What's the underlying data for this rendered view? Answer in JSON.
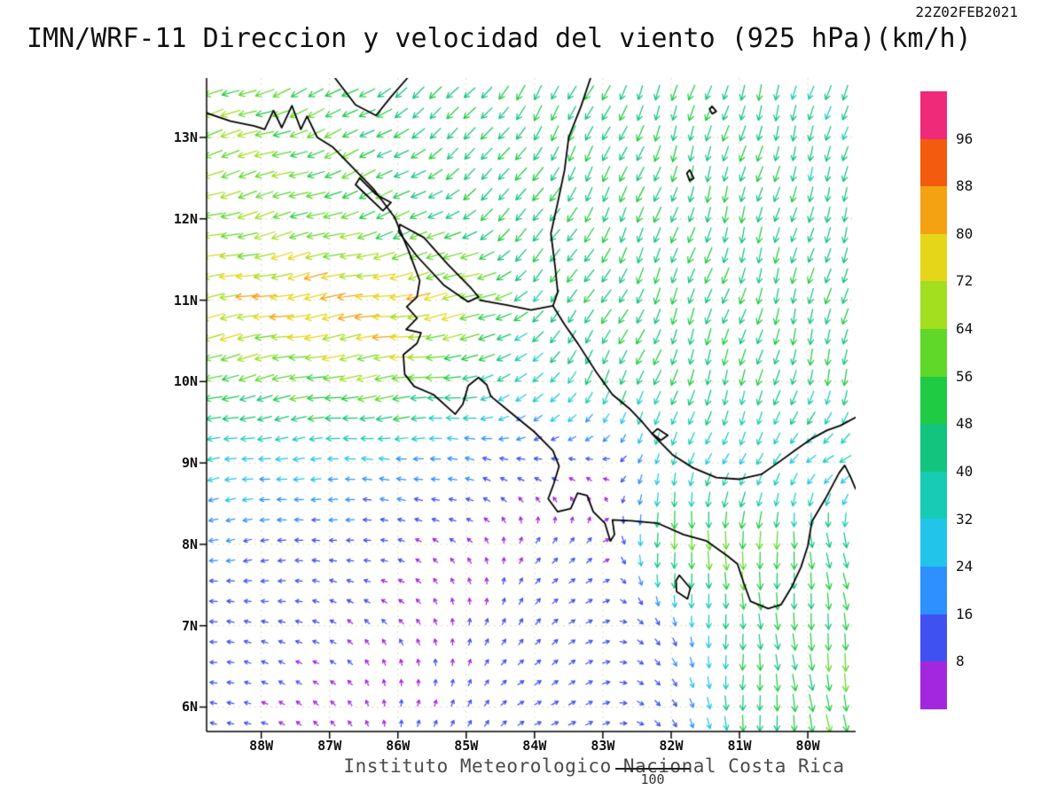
{
  "header": {
    "timestamp": "22Z02FEB2021",
    "title": "IMN/WRF-11 Direccion y velocidad del viento (925 hPa)(km/h)"
  },
  "footer": {
    "credit": "Instituto Meteorologico Nacional Costa Rica",
    "reference_value": "100"
  },
  "axes": {
    "lat_ticks": [
      "6N",
      "7N",
      "8N",
      "9N",
      "10N",
      "11N",
      "12N",
      "13N"
    ],
    "lon_ticks": [
      "88W",
      "87W",
      "86W",
      "85W",
      "84W",
      "83W",
      "82W",
      "81W",
      "80W"
    ],
    "lat_range": [
      5.7,
      13.73
    ],
    "lon_range": [
      -88.8,
      -79.3
    ]
  },
  "colorbar": {
    "levels": [
      8,
      16,
      24,
      32,
      40,
      48,
      56,
      64,
      72,
      80,
      88,
      96
    ],
    "colors": [
      "#a427e0",
      "#3f51f0",
      "#2e90ff",
      "#22c4ea",
      "#18cbb4",
      "#12c47e",
      "#1ecb43",
      "#5fd829",
      "#a3de1f",
      "#e6d619",
      "#f5a212",
      "#f35b0e",
      "#ef2a78"
    ]
  },
  "chart_data": {
    "type": "vector_field",
    "title": "IMN/WRF-11 Direccion y velocidad del viento (925 hPa)(km/h)",
    "units": "km/h",
    "level": "925 hPa",
    "valid_time": "22Z02FEB2021",
    "reference_vector": 100,
    "grid": {
      "lats": [
        6,
        7,
        8,
        9,
        10,
        11,
        12,
        13,
        14
      ],
      "lons": [
        -89,
        -88,
        -87,
        -86,
        -85,
        -84,
        -83,
        -82,
        -81,
        -80,
        -79
      ],
      "u": [
        [
          -10,
          -8,
          -5,
          0,
          5,
          10,
          12,
          8,
          2,
          5,
          10
        ],
        [
          -12,
          -10,
          -8,
          -5,
          0,
          8,
          10,
          5,
          0,
          5,
          10
        ],
        [
          -18,
          -15,
          -12,
          -8,
          -5,
          5,
          8,
          0,
          0,
          5,
          10
        ],
        [
          -30,
          -28,
          -25,
          -22,
          -18,
          -12,
          -8,
          -10,
          -15,
          -25,
          -30
        ],
        [
          -55,
          -55,
          -60,
          -65,
          -45,
          -25,
          -20,
          -15,
          -12,
          -10,
          -10
        ],
        [
          -70,
          -78,
          -82,
          -80,
          -70,
          -30,
          -25,
          -18,
          -15,
          -12,
          -12
        ],
        [
          -62,
          -60,
          -55,
          -50,
          -38,
          -28,
          -22,
          -15,
          -12,
          -12,
          -12
        ],
        [
          -62,
          -60,
          -52,
          -40,
          -32,
          -25,
          -20,
          -15,
          -12,
          -12,
          -12
        ],
        [
          -55,
          -52,
          -45,
          -35,
          -30,
          -25,
          -20,
          -15,
          -12,
          -12,
          -12
        ]
      ],
      "v": [
        [
          2,
          3,
          5,
          8,
          8,
          6,
          4,
          -10,
          -45,
          -52,
          -55
        ],
        [
          0,
          2,
          4,
          6,
          8,
          8,
          5,
          -15,
          -45,
          -50,
          -55
        ],
        [
          -3,
          -2,
          0,
          2,
          5,
          8,
          6,
          -60,
          -62,
          -48,
          -42
        ],
        [
          -5,
          -3,
          0,
          2,
          3,
          4,
          2,
          -30,
          -28,
          -20,
          -15
        ],
        [
          -15,
          -12,
          -10,
          -8,
          -5,
          -25,
          -40,
          -45,
          -45,
          -45,
          -45
        ],
        [
          -12,
          -12,
          -12,
          -12,
          -15,
          -30,
          -40,
          -45,
          -45,
          -45,
          -45
        ],
        [
          -15,
          -15,
          -18,
          -20,
          -25,
          -38,
          -42,
          -45,
          -45,
          -42,
          -42
        ],
        [
          -18,
          -18,
          -20,
          -25,
          -32,
          -40,
          -42,
          -45,
          -45,
          -42,
          -40
        ],
        [
          -22,
          -22,
          -25,
          -30,
          -35,
          -40,
          -40,
          -42,
          -42,
          -40,
          -40
        ]
      ]
    }
  }
}
